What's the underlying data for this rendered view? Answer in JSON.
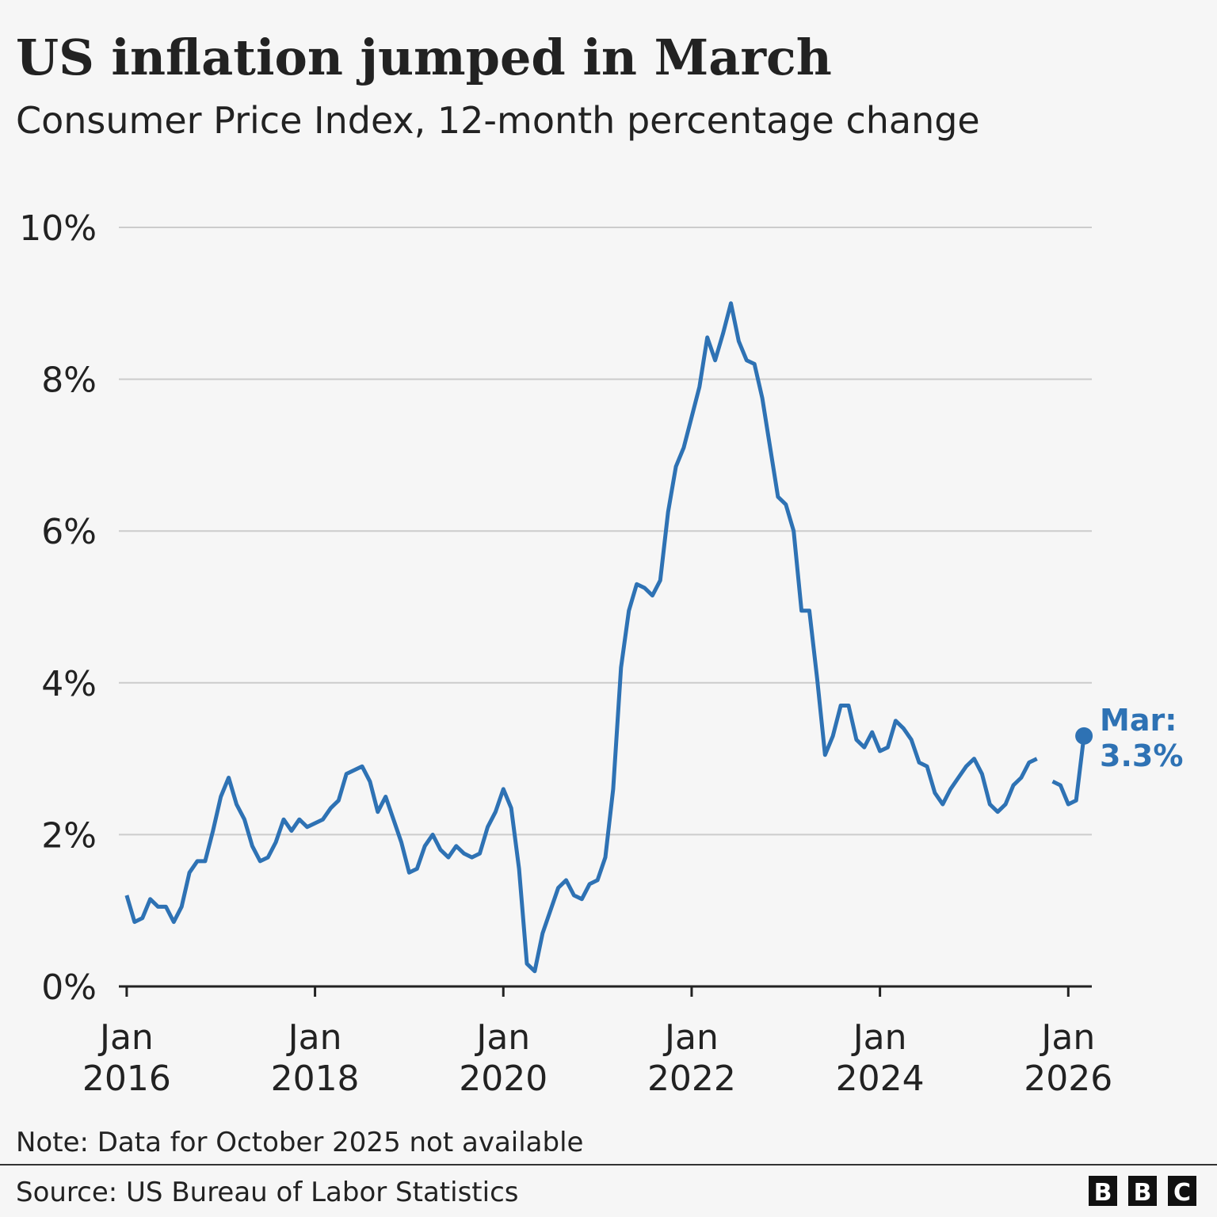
{
  "chart_data": {
    "type": "line",
    "title": "US inflation jumped in March",
    "subtitle": "Consumer Price Index, 12-month percentage change",
    "x": [
      "2016-01",
      "2016-02",
      "2016-03",
      "2016-04",
      "2016-05",
      "2016-06",
      "2016-07",
      "2016-08",
      "2016-09",
      "2016-10",
      "2016-11",
      "2016-12",
      "2017-01",
      "2017-02",
      "2017-03",
      "2017-04",
      "2017-05",
      "2017-06",
      "2017-07",
      "2017-08",
      "2017-09",
      "2017-10",
      "2017-11",
      "2017-12",
      "2018-01",
      "2018-02",
      "2018-03",
      "2018-04",
      "2018-05",
      "2018-06",
      "2018-07",
      "2018-08",
      "2018-09",
      "2018-10",
      "2018-11",
      "2018-12",
      "2019-01",
      "2019-02",
      "2019-03",
      "2019-04",
      "2019-05",
      "2019-06",
      "2019-07",
      "2019-08",
      "2019-09",
      "2019-10",
      "2019-11",
      "2019-12",
      "2020-01",
      "2020-02",
      "2020-03",
      "2020-04",
      "2020-05",
      "2020-06",
      "2020-07",
      "2020-08",
      "2020-09",
      "2020-10",
      "2020-11",
      "2020-12",
      "2021-01",
      "2021-02",
      "2021-03",
      "2021-04",
      "2021-05",
      "2021-06",
      "2021-07",
      "2021-08",
      "2021-09",
      "2021-10",
      "2021-11",
      "2021-12",
      "2022-01",
      "2022-02",
      "2022-03",
      "2022-04",
      "2022-05",
      "2022-06",
      "2022-07",
      "2022-08",
      "2022-09",
      "2022-10",
      "2022-11",
      "2022-12",
      "2023-01",
      "2023-02",
      "2023-03",
      "2023-04",
      "2023-05",
      "2023-06",
      "2023-07",
      "2023-08",
      "2023-09",
      "2023-10",
      "2023-11",
      "2023-12",
      "2024-01",
      "2024-02",
      "2024-03",
      "2024-04",
      "2024-05",
      "2024-06",
      "2024-07",
      "2024-08",
      "2024-09",
      "2024-10",
      "2024-11",
      "2024-12",
      "2025-01",
      "2025-02",
      "2025-03",
      "2025-04",
      "2025-05",
      "2025-06",
      "2025-07",
      "2025-08",
      "2025-09",
      "2025-10",
      "2025-11",
      "2025-12",
      "2026-01",
      "2026-02",
      "2026-03"
    ],
    "series": [
      {
        "color": "#2e72b4",
        "values": [
          1.2,
          0.85,
          0.9,
          1.15,
          1.05,
          1.05,
          0.85,
          1.05,
          1.5,
          1.65,
          1.65,
          2.05,
          2.5,
          2.75,
          2.4,
          2.2,
          1.85,
          1.65,
          1.7,
          1.9,
          2.2,
          2.05,
          2.2,
          2.1,
          2.15,
          2.2,
          2.35,
          2.45,
          2.8,
          2.85,
          2.9,
          2.7,
          2.3,
          2.5,
          2.2,
          1.9,
          1.5,
          1.55,
          1.85,
          2.0,
          1.8,
          1.7,
          1.85,
          1.75,
          1.7,
          1.75,
          2.1,
          2.3,
          2.6,
          2.35,
          1.55,
          0.3,
          0.2,
          0.7,
          1.0,
          1.3,
          1.4,
          1.2,
          1.15,
          1.35,
          1.4,
          1.7,
          2.6,
          4.2,
          4.95,
          5.3,
          5.25,
          5.15,
          5.35,
          6.25,
          6.85,
          7.1,
          7.5,
          7.9,
          8.55,
          8.25,
          8.6,
          9.0,
          8.5,
          8.25,
          8.2,
          7.75,
          7.1,
          6.45,
          6.35,
          6.0,
          4.95,
          4.95,
          4.05,
          3.05,
          3.3,
          3.7,
          3.7,
          3.25,
          3.15,
          3.35,
          3.1,
          3.15,
          3.5,
          3.4,
          3.25,
          2.95,
          2.9,
          2.55,
          2.4,
          2.6,
          2.75,
          2.9,
          3.0,
          2.8,
          2.4,
          2.3,
          2.4,
          2.65,
          2.75,
          2.95,
          3.0,
          null,
          2.7,
          2.65,
          2.4,
          2.45,
          3.3
        ]
      }
    ],
    "xlim": [
      "2015-12",
      "2026-04"
    ],
    "xticks": [
      {
        "value": "2016-01",
        "label": "Jan 2016"
      },
      {
        "value": "2018-01",
        "label": "Jan 2018"
      },
      {
        "value": "2020-01",
        "label": "Jan 2020"
      },
      {
        "value": "2022-01",
        "label": "Jan 2022"
      },
      {
        "value": "2024-01",
        "label": "Jan 2024"
      },
      {
        "value": "2026-01",
        "label": "Jan 2026"
      }
    ],
    "ylim": [
      0,
      10
    ],
    "yticks": [
      {
        "value": 0,
        "label": "0%"
      },
      {
        "value": 2,
        "label": "2%"
      },
      {
        "value": 4,
        "label": "4%"
      },
      {
        "value": 6,
        "label": "6%"
      },
      {
        "value": 8,
        "label": "8%"
      },
      {
        "value": 10,
        "label": "10%"
      }
    ],
    "grid": true,
    "annotation": {
      "text": "Mar:",
      "label": "3.3%"
    },
    "note": "Note: Data for October 2025 not available",
    "source": "Source: US Bureau of Labor Statistics",
    "logo": "BBC"
  }
}
